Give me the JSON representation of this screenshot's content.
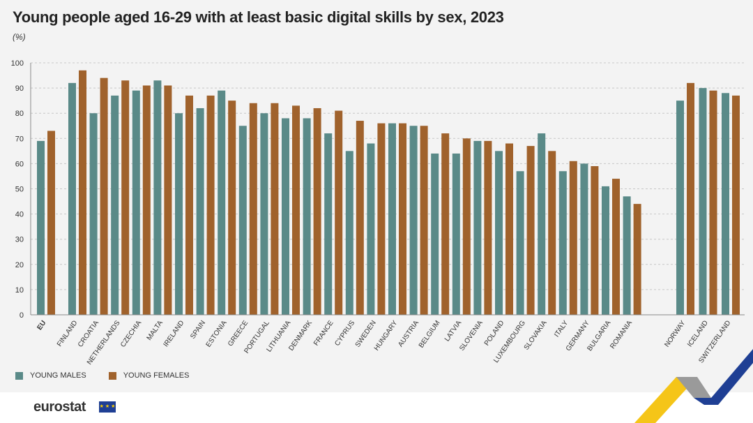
{
  "chart_data": {
    "type": "bar",
    "title": "Young people aged 16-29 with at least basic digital skills by sex, 2023",
    "unit": "(%)",
    "xlabel": "",
    "ylabel": "",
    "ylim": [
      0,
      100
    ],
    "yticks": [
      0,
      10,
      20,
      30,
      40,
      50,
      60,
      70,
      80,
      90,
      100
    ],
    "grid": true,
    "legend_position": "bottom-left",
    "categories": [
      "EU",
      "FINLAND",
      "CROATIA",
      "NETHERLANDS",
      "CZECHIA",
      "MALTA",
      "IRELAND",
      "SPAIN",
      "ESTONIA",
      "GREECE",
      "PORTUGAL",
      "LITHUANIA",
      "DENMARK",
      "FRANCE",
      "CYPRUS",
      "SWEDEN",
      "HUNGARY",
      "AUSTRIA",
      "BELGIUM",
      "LATVIA",
      "SLOVENIA",
      "POLAND",
      "LUXEMBOURG",
      "SLOVAKIA",
      "ITALY",
      "GERMANY",
      "BULGARIA",
      "ROMANIA",
      "NORWAY",
      "ICELAND",
      "SWITZERLAND"
    ],
    "series": [
      {
        "name": "YOUNG MALES",
        "color": "#5a8a88",
        "values": [
          69,
          92,
          80,
          87,
          89,
          93,
          80,
          82,
          89,
          75,
          80,
          78,
          78,
          72,
          65,
          68,
          76,
          75,
          64,
          64,
          69,
          65,
          57,
          72,
          57,
          60,
          51,
          47,
          85,
          90,
          88
        ]
      },
      {
        "name": "YOUNG FEMALES",
        "color": "#a0622c",
        "values": [
          73,
          97,
          94,
          93,
          91,
          91,
          87,
          87,
          85,
          84,
          84,
          83,
          82,
          81,
          77,
          76,
          76,
          75,
          72,
          70,
          69,
          68,
          67,
          65,
          61,
          59,
          54,
          44,
          92,
          89,
          87
        ]
      }
    ]
  },
  "footer": {
    "logo": "eurostat"
  }
}
